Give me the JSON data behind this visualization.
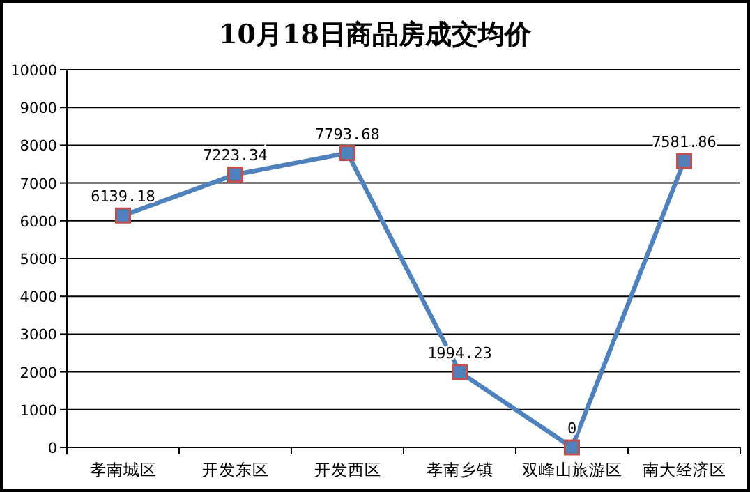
{
  "chart_data": {
    "type": "line",
    "title": "10月18日商品房成交均价",
    "categories": [
      "孝南城区",
      "开发东区",
      "开发西区",
      "孝南乡镇",
      "双峰山旅游区",
      "南大经济区"
    ],
    "series": [
      {
        "color": "#4f81bd",
        "values": [
          6139.18,
          7223.34,
          7793.68,
          1994.23,
          0,
          7581.86
        ]
      }
    ],
    "ylim": [
      0,
      10000
    ],
    "yticks": [
      0,
      1000,
      2000,
      3000,
      4000,
      5000,
      6000,
      7000,
      8000,
      9000,
      10000
    ],
    "grid": "y",
    "marker": "square",
    "data_labels": true
  }
}
